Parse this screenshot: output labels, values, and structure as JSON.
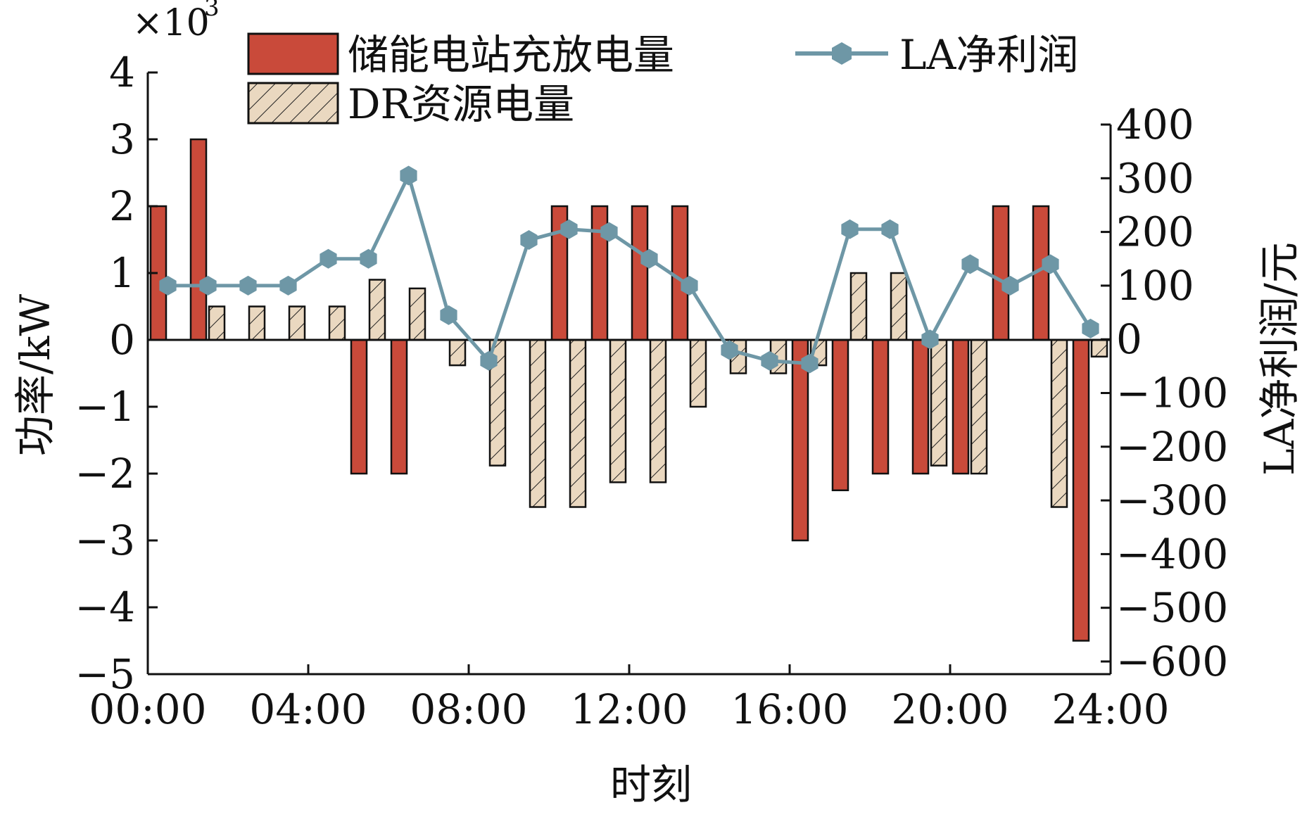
{
  "chart_data": {
    "type": "bar",
    "scale_label": "×10",
    "scale_exponent": "3",
    "xlabel": "时刻",
    "ylabel_left": "功率/kW",
    "ylabel_right": "LA净利润/元",
    "x_ticks": [
      "00:00",
      "04:00",
      "08:00",
      "12:00",
      "16:00",
      "20:00",
      "24:00"
    ],
    "x_range": [
      0,
      24
    ],
    "ylim_left": [
      -5,
      4
    ],
    "ylim_right": [
      -600,
      400
    ],
    "y_ticks_left": [
      "4",
      "3",
      "2",
      "1",
      "0",
      "−1",
      "−2",
      "−3",
      "−4",
      "−5"
    ],
    "y_ticks_right": [
      "400",
      "300",
      "200",
      "100",
      "0",
      "−100",
      "−200",
      "−300",
      "−400",
      "−500",
      "−600"
    ],
    "legend_position": "top",
    "categories": [
      0,
      1,
      2,
      3,
      4,
      5,
      6,
      7,
      8,
      9,
      10,
      11,
      12,
      13,
      14,
      15,
      16,
      17,
      18,
      19,
      20,
      21,
      22,
      23
    ],
    "series": [
      {
        "name": "储能电站充放电量",
        "kind": "bar",
        "color": "#c94a3a",
        "values": [
          2,
          3,
          0,
          0,
          0,
          -2,
          -2,
          0,
          0,
          0,
          2,
          2,
          2,
          2,
          0,
          0,
          -3,
          -2.25,
          -2,
          -2,
          -2,
          2,
          2,
          -4.5
        ]
      },
      {
        "name": "DR资源电量",
        "kind": "bar",
        "color": "#ead8c0",
        "pattern": "hatched",
        "values": [
          0,
          0.5,
          0.5,
          0.5,
          0.5,
          0.9,
          0.77,
          -0.38,
          -1.88,
          -2.5,
          -2.5,
          -2.13,
          -2.13,
          -1.0,
          -0.5,
          -0.5,
          -0.38,
          1.0,
          1.0,
          -1.88,
          -2.0,
          0,
          -2.5,
          -0.25
        ]
      },
      {
        "name": "LA净利润",
        "kind": "line",
        "color": "#6e97a6",
        "x": [
          0.5,
          1.5,
          2.5,
          3.5,
          4.5,
          5.5,
          6.5,
          7.5,
          8.5,
          9.5,
          10.5,
          11.5,
          12.5,
          13.5,
          14.5,
          15.5,
          16.5,
          17.5,
          18.5,
          19.5,
          20.5,
          21.5,
          22.5,
          23.5
        ],
        "values": [
          100,
          100,
          100,
          100,
          150,
          150,
          305,
          45,
          -40,
          185,
          205,
          200,
          150,
          100,
          -20,
          -40,
          -45,
          205,
          205,
          0,
          140,
          100,
          140,
          20
        ]
      }
    ]
  }
}
